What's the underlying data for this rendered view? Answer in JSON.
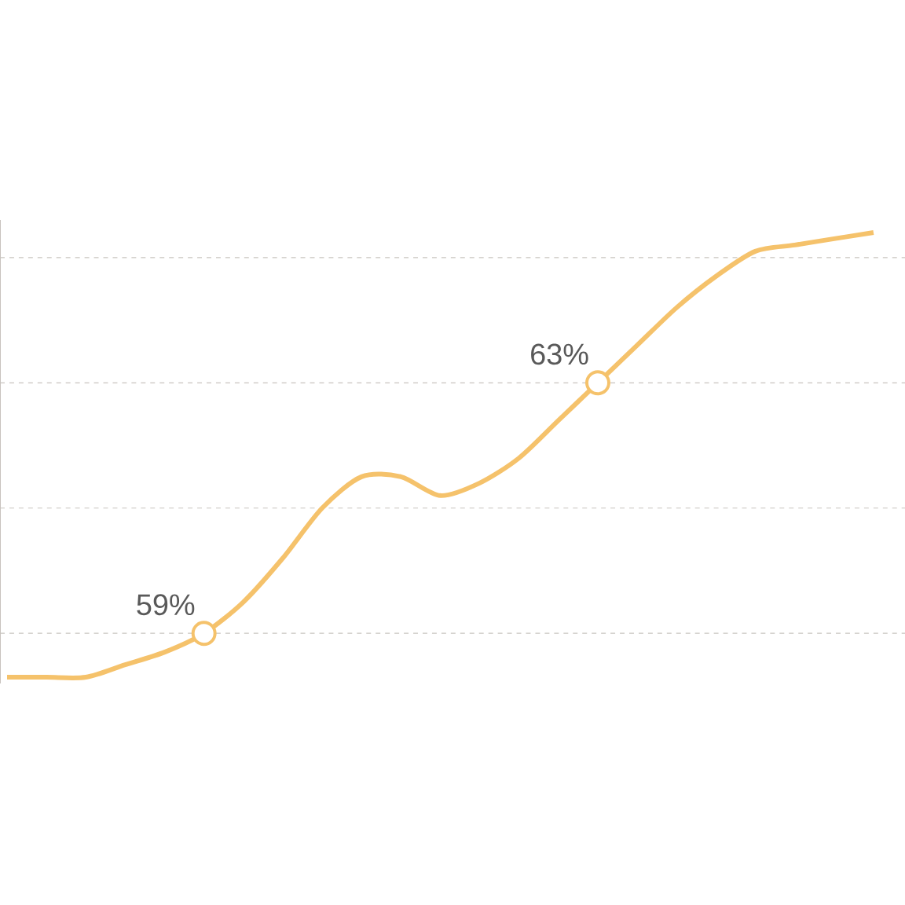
{
  "chart_data": {
    "type": "line",
    "categories": [
      null,
      null,
      null,
      null,
      null,
      null,
      null,
      null,
      null,
      null,
      null,
      null,
      null,
      null,
      null,
      null,
      null,
      null,
      null,
      null,
      null,
      null,
      null
    ],
    "series": [
      {
        "color": "#f5c26b",
        "values": [
          58.3,
          58.3,
          58.3,
          58.5,
          58.7,
          59,
          59.5,
          60.2,
          61.0,
          61.5,
          61.5,
          61.2,
          61.4,
          61.8,
          62.4,
          63,
          63.6,
          64.2,
          64.7,
          65.1,
          65.2,
          65.3,
          65.4
        ],
        "value_labels": [
          null,
          null,
          null,
          null,
          null,
          "59%",
          null,
          null,
          null,
          null,
          null,
          null,
          null,
          null,
          null,
          "63%",
          null,
          null,
          null,
          null,
          null,
          null,
          null
        ]
      }
    ],
    "ylim": [
      58.2,
      65.6
    ],
    "yticks": [
      {
        "value": 59,
        "label": null
      },
      {
        "value": 61,
        "label": null
      },
      {
        "value": 63,
        "label": null
      },
      {
        "value": 65,
        "label": null
      }
    ],
    "grid": "y",
    "marker": "none",
    "line_style": "solid"
  }
}
